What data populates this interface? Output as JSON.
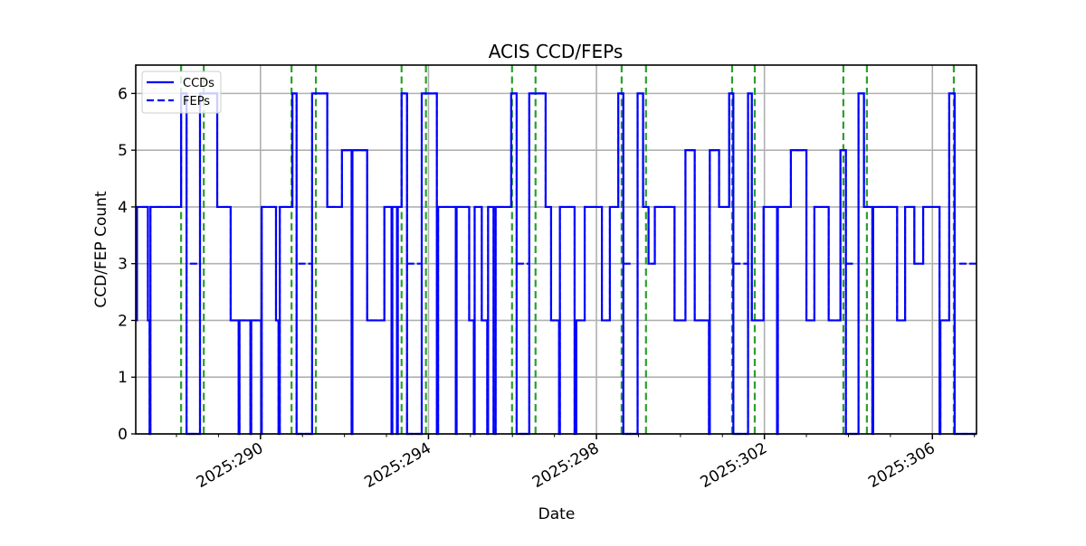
{
  "chart_data": {
    "type": "line",
    "title": "ACIS CCD/FEPs",
    "xlabel": "Date",
    "ylabel": "CCD/FEP Count",
    "xlim": [
      287.03,
      307.05
    ],
    "ylim": [
      0,
      6.5
    ],
    "grid": true,
    "legend_position": "upper left",
    "x_major_ticks": [
      290,
      294,
      298,
      302,
      306
    ],
    "x_tick_labels": [
      "2025:290",
      "2025:294",
      "2025:298",
      "2025:302",
      "2025:306"
    ],
    "x_minor_ticks": [
      287,
      288,
      289,
      291,
      292,
      293,
      295,
      296,
      297,
      299,
      300,
      301,
      303,
      304,
      305,
      307
    ],
    "y_ticks": [
      0,
      1,
      2,
      3,
      4,
      5,
      6
    ],
    "y_tick_labels": [
      "0",
      "1",
      "2",
      "3",
      "4",
      "5",
      "6"
    ],
    "legend": [
      {
        "label": "CCDs",
        "style": "solid",
        "color": "#0000ff"
      },
      {
        "label": "FEPs",
        "style": "dashed",
        "color": "#0000ff"
      }
    ],
    "series": [
      {
        "name": "CCDs",
        "style": "solid",
        "color": "#0000ff",
        "steps": [
          [
            287.03,
            2
          ],
          [
            287.06,
            4
          ],
          [
            287.32,
            2
          ],
          [
            287.36,
            0
          ],
          [
            287.38,
            4
          ],
          [
            288.11,
            6
          ],
          [
            288.24,
            0
          ],
          [
            288.56,
            6
          ],
          [
            288.97,
            4
          ],
          [
            289.29,
            2
          ],
          [
            289.48,
            0
          ],
          [
            289.5,
            2
          ],
          [
            289.76,
            0
          ],
          [
            289.78,
            2
          ],
          [
            290.02,
            0
          ],
          [
            290.03,
            4
          ],
          [
            290.37,
            2
          ],
          [
            290.43,
            0
          ],
          [
            290.46,
            4
          ],
          [
            290.76,
            6
          ],
          [
            290.86,
            0
          ],
          [
            291.23,
            6
          ],
          [
            291.59,
            4
          ],
          [
            291.94,
            5
          ],
          [
            292.17,
            0
          ],
          [
            292.19,
            5
          ],
          [
            292.54,
            2
          ],
          [
            292.95,
            4
          ],
          [
            293.12,
            0
          ],
          [
            293.14,
            4
          ],
          [
            293.25,
            0
          ],
          [
            293.27,
            4
          ],
          [
            293.36,
            6
          ],
          [
            293.49,
            0
          ],
          [
            293.84,
            6
          ],
          [
            294.2,
            0
          ],
          [
            294.23,
            4
          ],
          [
            294.65,
            0
          ],
          [
            294.67,
            4
          ],
          [
            294.97,
            2
          ],
          [
            295.08,
            0
          ],
          [
            295.1,
            4
          ],
          [
            295.27,
            2
          ],
          [
            295.4,
            0
          ],
          [
            295.42,
            4
          ],
          [
            295.55,
            0
          ],
          [
            295.6,
            4
          ],
          [
            295.97,
            6
          ],
          [
            296.1,
            0
          ],
          [
            296.4,
            6
          ],
          [
            296.79,
            4
          ],
          [
            296.92,
            2
          ],
          [
            297.11,
            0
          ],
          [
            297.13,
            4
          ],
          [
            297.48,
            0
          ],
          [
            297.52,
            2
          ],
          [
            297.72,
            4
          ],
          [
            298.13,
            2
          ],
          [
            298.32,
            4
          ],
          [
            298.52,
            6
          ],
          [
            298.64,
            0
          ],
          [
            298.98,
            6
          ],
          [
            299.11,
            4
          ],
          [
            299.24,
            3
          ],
          [
            299.39,
            4
          ],
          [
            299.86,
            2
          ],
          [
            300.12,
            5
          ],
          [
            300.34,
            2
          ],
          [
            300.68,
            0
          ],
          [
            300.7,
            5
          ],
          [
            300.92,
            4
          ],
          [
            301.16,
            6
          ],
          [
            301.26,
            0
          ],
          [
            301.61,
            6
          ],
          [
            301.7,
            2
          ],
          [
            301.98,
            4
          ],
          [
            302.3,
            0
          ],
          [
            302.32,
            4
          ],
          [
            302.63,
            5
          ],
          [
            303.0,
            2
          ],
          [
            303.19,
            4
          ],
          [
            303.53,
            2
          ],
          [
            303.81,
            5
          ],
          [
            303.94,
            0
          ],
          [
            304.24,
            6
          ],
          [
            304.37,
            4
          ],
          [
            304.57,
            0
          ],
          [
            304.59,
            4
          ],
          [
            305.16,
            2
          ],
          [
            305.35,
            4
          ],
          [
            305.57,
            3
          ],
          [
            305.78,
            4
          ],
          [
            306.17,
            0
          ],
          [
            306.19,
            2
          ],
          [
            306.4,
            6
          ],
          [
            306.53,
            0
          ],
          [
            307.05,
            0
          ]
        ]
      },
      {
        "name": "FEPs",
        "style": "dashed",
        "color": "#0000ff",
        "segments_at_3": [
          [
            288.32,
            288.56
          ],
          [
            290.9,
            291.23
          ],
          [
            293.49,
            293.84
          ],
          [
            296.1,
            296.4
          ],
          [
            298.64,
            298.83
          ],
          [
            301.26,
            301.61
          ],
          [
            303.94,
            304.11
          ],
          [
            306.64,
            307.05
          ]
        ],
        "note_visible": "Dashed FEP line overlaps CCD line except short segments at 3 where CCDs drop to 0"
      }
    ],
    "vertical_markers": {
      "color": "#2ca02c",
      "style": "dashed",
      "x": [
        288.11,
        288.65,
        290.74,
        291.32,
        293.36,
        293.94,
        295.99,
        296.55,
        298.6,
        299.18,
        301.23,
        301.77,
        303.88,
        304.44,
        306.51
      ]
    }
  },
  "colors": {
    "series": "#0000ff",
    "marker": "#2ca02c",
    "grid": "#b0b0b0",
    "axis": "#000000"
  }
}
